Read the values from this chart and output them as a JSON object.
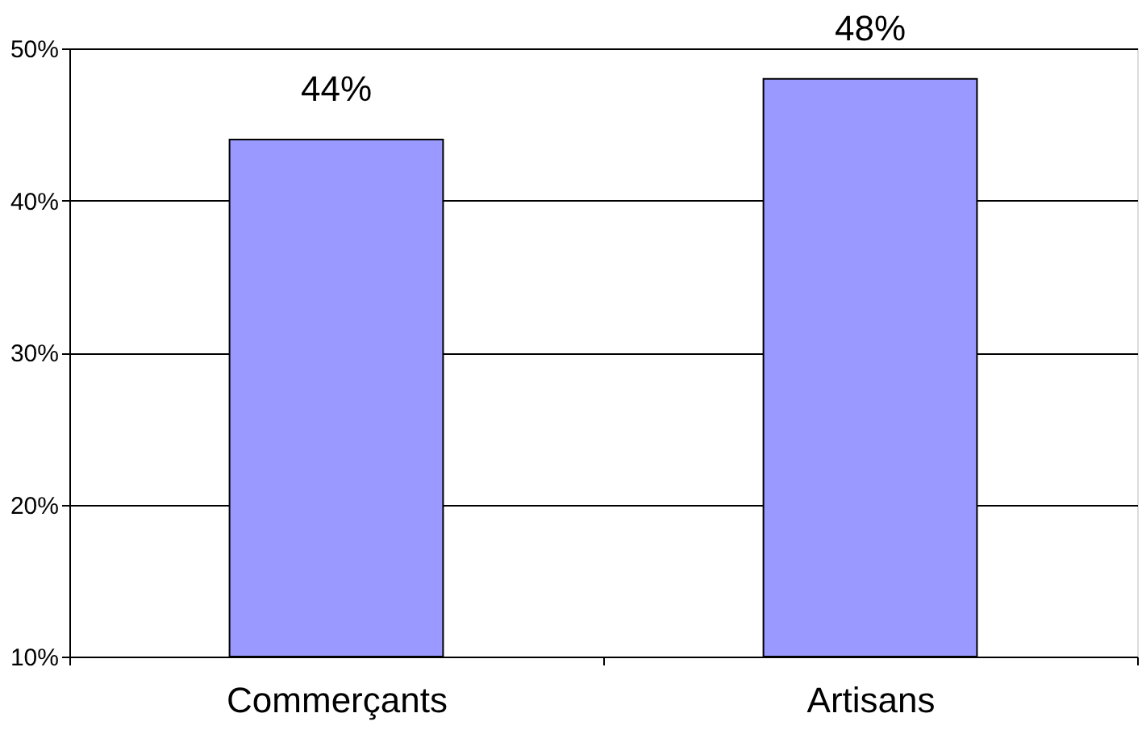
{
  "chart_data": {
    "type": "bar",
    "categories": [
      "Commerçants",
      "Artisans"
    ],
    "values": [
      44,
      48
    ],
    "color": "#9999ff",
    "value_labels": [
      "44%",
      "48%"
    ],
    "ylim": [
      10,
      50
    ],
    "yticks": [
      {
        "value": 10,
        "label": "10%"
      },
      {
        "value": 20,
        "label": "20%"
      },
      {
        "value": 30,
        "label": "30%"
      },
      {
        "value": 40,
        "label": "40%"
      },
      {
        "value": 50,
        "label": "50%"
      }
    ],
    "grid": "y"
  }
}
